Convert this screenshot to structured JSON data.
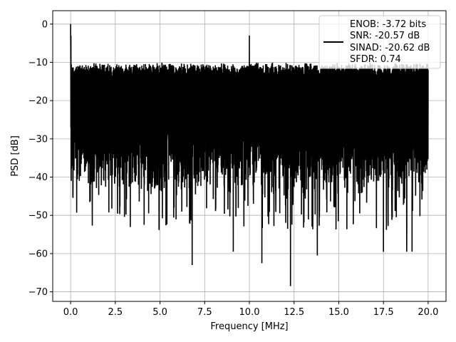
{
  "chart_data": {
    "type": "line",
    "title": "",
    "xlabel": "Frequency [MHz]",
    "ylabel": "PSD [dB]",
    "xlim": [
      -1.0,
      21.0
    ],
    "ylim": [
      -72.5,
      3.5
    ],
    "grid": true,
    "legend_placement": "top-right",
    "x_ticks": [
      {
        "value": 0.0,
        "label": "0.0"
      },
      {
        "value": 2.5,
        "label": "2.5"
      },
      {
        "value": 5.0,
        "label": "5.0"
      },
      {
        "value": 7.5,
        "label": "7.5"
      },
      {
        "value": 10.0,
        "label": "10.0"
      },
      {
        "value": 12.5,
        "label": "12.5"
      },
      {
        "value": 15.0,
        "label": "15.0"
      },
      {
        "value": 17.5,
        "label": "17.5"
      },
      {
        "value": 20.0,
        "label": "20.0"
      }
    ],
    "y_ticks": [
      {
        "value": 0,
        "label": "0"
      },
      {
        "value": -10,
        "label": "−10"
      },
      {
        "value": -20,
        "label": "−20"
      },
      {
        "value": -30,
        "label": "−30"
      },
      {
        "value": -40,
        "label": "−40"
      },
      {
        "value": -50,
        "label": "−50"
      },
      {
        "value": -60,
        "label": "−60"
      },
      {
        "value": -70,
        "label": "−70"
      }
    ],
    "series": [
      {
        "color": "#000000",
        "x_range": [
          0.0,
          20.0
        ],
        "noise_floor_range_db": [
          -40,
          -13
        ],
        "dc_peak": {
          "x": 0.0,
          "y": 0.0
        },
        "tone_peak": {
          "x": 10.0,
          "y": -3.0
        },
        "deep_notches": [
          {
            "x": 6.8,
            "y": -63
          },
          {
            "x": 9.1,
            "y": -59.5
          },
          {
            "x": 10.7,
            "y": -62.5
          },
          {
            "x": 12.3,
            "y": -68.5
          },
          {
            "x": 13.8,
            "y": -60.5
          },
          {
            "x": 17.5,
            "y": -59.5
          },
          {
            "x": 18.8,
            "y": -59.5
          },
          {
            "x": 19.1,
            "y": -59.5
          }
        ]
      }
    ],
    "legend_lines": [
      "ENOB: -3.72 bits",
      "SNR: -20.57 dB",
      "SINAD: -20.62 dB",
      "SFDR: 0.74"
    ]
  }
}
